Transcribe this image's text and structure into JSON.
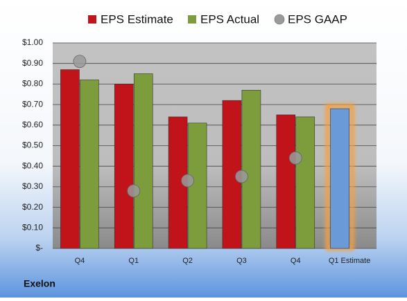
{
  "chart_data": {
    "type": "bar",
    "categories": [
      "Q4",
      "Q1",
      "Q2",
      "Q3",
      "Q4",
      "Q1 Estimate"
    ],
    "series": [
      {
        "name": "EPS Estimate",
        "color": "#c0141a",
        "values": [
          0.87,
          0.8,
          0.64,
          0.72,
          0.65,
          0.68
        ],
        "colors": [
          "#c0141a",
          "#c0141a",
          "#c0141a",
          "#c0141a",
          "#c0141a",
          "#6a9ad8"
        ]
      },
      {
        "name": "EPS Actual",
        "color": "#7d9c3c",
        "values": [
          0.82,
          0.85,
          0.61,
          0.77,
          0.64,
          null
        ]
      },
      {
        "name": "EPS GAAP",
        "color": "#9a9a9a",
        "type": "scatter",
        "values": [
          0.91,
          0.28,
          0.33,
          0.35,
          0.44,
          null
        ]
      }
    ],
    "ylim": [
      0,
      1.0
    ],
    "yticks": [
      {
        "value": 0,
        "label": "$-"
      },
      {
        "value": 0.1,
        "label": "$0.10"
      },
      {
        "value": 0.2,
        "label": "$0.20"
      },
      {
        "value": 0.3,
        "label": "$0.30"
      },
      {
        "value": 0.4,
        "label": "$0.40"
      },
      {
        "value": 0.5,
        "label": "$0.50"
      },
      {
        "value": 0.6,
        "label": "$0.60"
      },
      {
        "value": 0.7,
        "label": "$0.70"
      },
      {
        "value": 0.8,
        "label": "$0.80"
      },
      {
        "value": 0.9,
        "label": "$0.90"
      },
      {
        "value": 1.0,
        "label": "$1.00"
      }
    ],
    "grid": true,
    "legend": "top",
    "footer": "Exelon"
  }
}
